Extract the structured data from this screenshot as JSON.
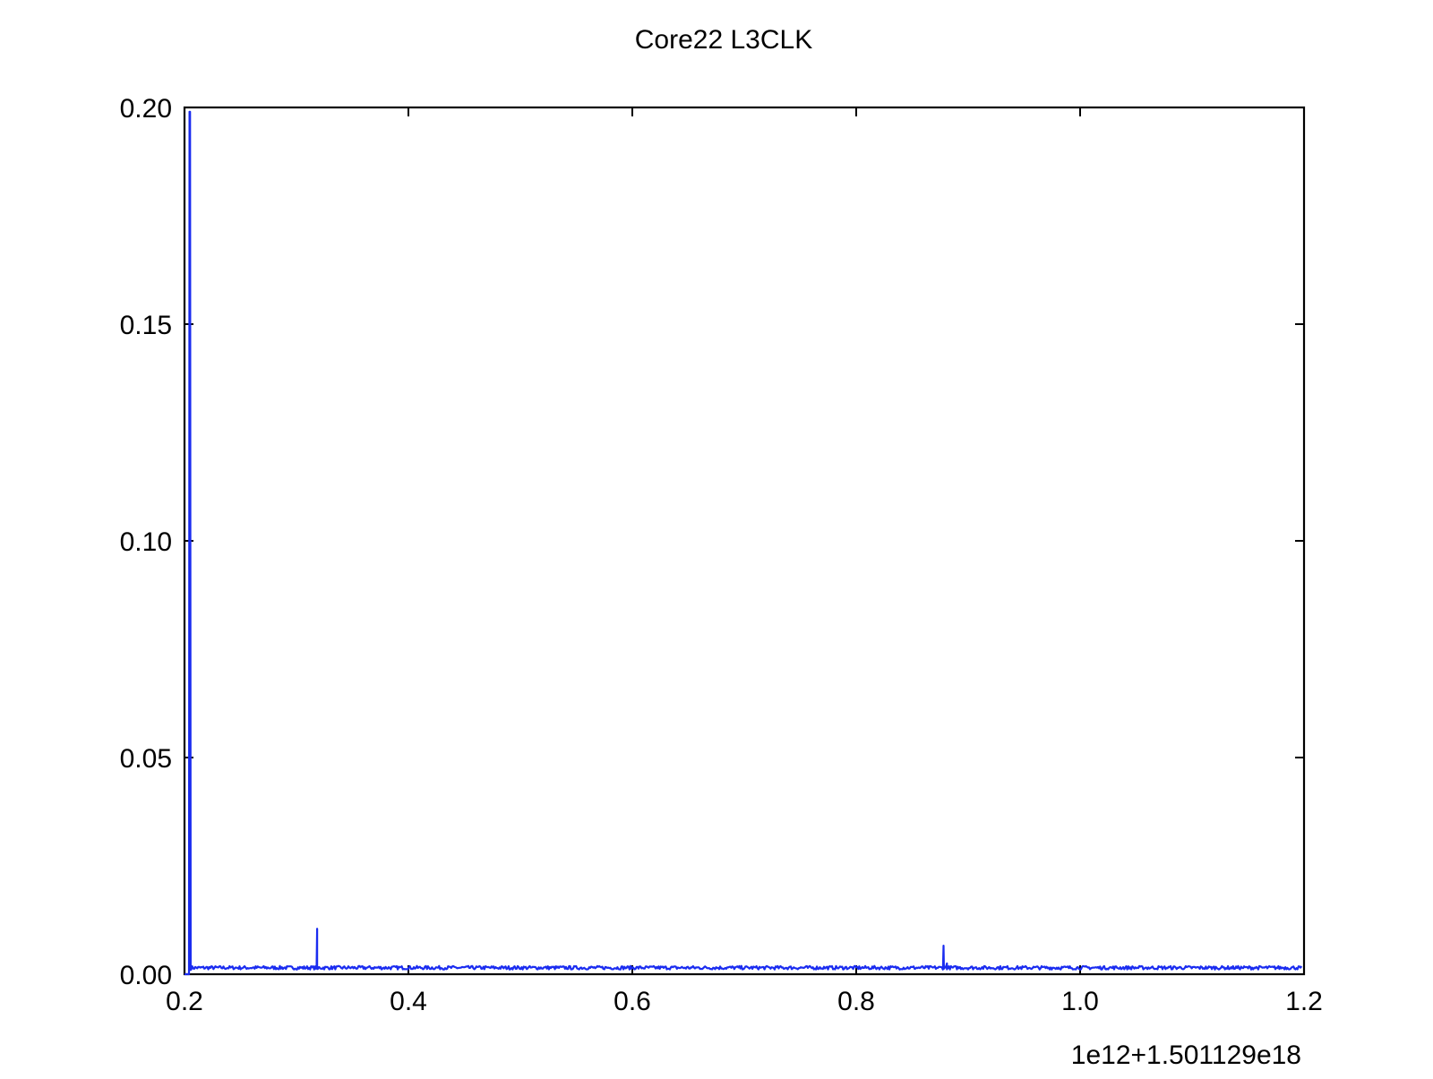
{
  "chart_data": {
    "type": "line",
    "title": "Core22 L3CLK",
    "xlabel": "",
    "ylabel": "",
    "x_offset_label": "1e12+1.501129e18",
    "xlim": [
      0.2,
      1.2
    ],
    "ylim": [
      0.0,
      0.2
    ],
    "xticks": [
      0.2,
      0.4,
      0.6,
      0.8,
      1.0,
      1.2
    ],
    "xtick_labels": [
      "0.2",
      "0.4",
      "0.6",
      "0.8",
      "1.0",
      "1.2"
    ],
    "yticks": [
      0.0,
      0.05,
      0.1,
      0.15,
      0.2
    ],
    "ytick_labels": [
      "0.00",
      "0.05",
      "0.10",
      "0.15",
      "0.20"
    ],
    "grid": false,
    "legend": "none",
    "series": [
      {
        "color": "#1a2cf0",
        "baseline": 0.0015,
        "noise": 0.0004,
        "x_start": 0.205,
        "x_end": 1.198,
        "points": [
          [
            0.2,
            0.0
          ],
          [
            0.204,
            0.0
          ],
          [
            0.2045,
            0.199
          ],
          [
            0.205,
            0.199
          ],
          [
            0.2055,
            0.001
          ],
          [
            0.318,
            0.0014
          ],
          [
            0.3185,
            0.0105
          ],
          [
            0.319,
            0.0012
          ],
          [
            0.8775,
            0.0014
          ],
          [
            0.878,
            0.0066
          ],
          [
            0.8785,
            0.0013
          ],
          [
            0.881,
            0.0025
          ],
          [
            0.882,
            0.0014
          ]
        ]
      }
    ]
  }
}
